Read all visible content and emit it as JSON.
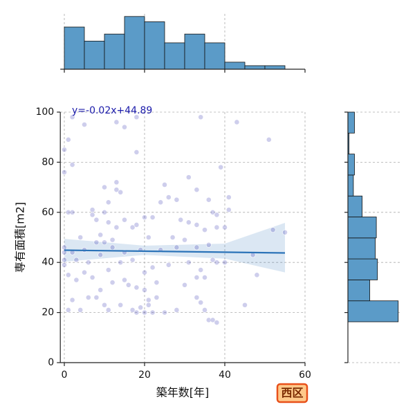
{
  "chart_data": [
    {
      "type": "scatter",
      "xlabel": "築年数[年]",
      "ylabel": "専有面積[m2]",
      "annotation": "y=-0.02x+44.89",
      "label": "西区",
      "xlim": [
        -1,
        60
      ],
      "xticks": [
        0,
        20,
        40,
        60
      ],
      "ylim": [
        0,
        100
      ],
      "yticks": [
        0,
        20,
        40,
        60,
        80,
        100
      ],
      "grid": true,
      "color": "#2222aa",
      "line_color": "#2b73b8",
      "points": {
        "x": [
          2,
          5,
          1,
          0,
          0,
          2,
          13,
          15,
          18,
          18,
          34,
          43,
          51,
          10,
          13,
          13,
          14,
          25,
          31,
          33,
          39,
          41,
          24,
          26,
          28,
          36,
          37,
          41,
          38,
          1,
          2,
          7,
          7,
          10,
          11,
          8,
          11,
          13,
          15,
          17,
          18,
          20,
          22,
          29,
          31,
          33,
          35,
          38,
          40,
          52,
          55,
          4,
          9,
          12,
          21,
          27,
          30,
          0,
          0,
          2,
          5,
          8,
          10,
          12,
          15,
          19,
          24,
          28,
          33,
          36,
          47,
          0,
          0,
          3,
          6,
          9,
          11,
          14,
          17,
          20,
          22,
          26,
          31,
          34,
          37,
          38,
          40,
          48,
          1,
          3,
          5,
          7,
          9,
          12,
          15,
          16,
          18,
          20,
          23,
          30,
          33,
          35,
          2,
          4,
          6,
          8,
          10,
          11,
          14,
          17,
          19,
          21,
          21,
          22,
          23,
          25,
          28,
          33,
          34,
          35,
          36,
          37,
          38,
          45,
          1,
          18,
          20
        ],
        "y": [
          98,
          95,
          89,
          85,
          76,
          79,
          96,
          94,
          98,
          84,
          98,
          96,
          89,
          70,
          72,
          69,
          68,
          71,
          74,
          69,
          78,
          66,
          64,
          66,
          65,
          65,
          60,
          61,
          59,
          60,
          60,
          61,
          59,
          60,
          64,
          57,
          56,
          54,
          57,
          54,
          55,
          58,
          58,
          57,
          56,
          55,
          53,
          54,
          54,
          53,
          52,
          50,
          51,
          49,
          50,
          50,
          49,
          46,
          44,
          44,
          45,
          48,
          48,
          46,
          44,
          45,
          45,
          46,
          46,
          47,
          43,
          41,
          39,
          41,
          40,
          43,
          37,
          40,
          41,
          36,
          38,
          39,
          40,
          37,
          41,
          40,
          40,
          35,
          35,
          33,
          36,
          34,
          29,
          32,
          33,
          31,
          30,
          29,
          32,
          31,
          34,
          34,
          25,
          21,
          26,
          26,
          23,
          21,
          23,
          21,
          22,
          23,
          25,
          20,
          26,
          20,
          21,
          26,
          24,
          21,
          17,
          17,
          16,
          23,
          21,
          20,
          20
        ]
      },
      "regression": {
        "x": [
          0,
          55
        ],
        "y": [
          44.89,
          43.79
        ]
      },
      "band": {
        "x": [
          0,
          20,
          40,
          55
        ],
        "upper": [
          49.4,
          46.7,
          47.5,
          55.8
        ],
        "lower": [
          40.3,
          43,
          41.5,
          36
        ]
      }
    },
    {
      "type": "histogram",
      "orientation": "vertical",
      "bins": [
        0,
        5,
        10,
        15,
        20,
        25,
        30,
        35,
        40,
        45,
        50,
        55
      ],
      "counts": [
        24,
        16,
        20,
        30,
        27,
        15,
        20,
        15,
        4,
        2,
        2
      ],
      "xlim": [
        -1,
        60
      ],
      "xticks": [
        0,
        20,
        40,
        60
      ],
      "ylim": [
        0,
        31.5
      ],
      "grid": true,
      "color": "#5b9bc8"
    },
    {
      "type": "histogram",
      "orientation": "horizontal",
      "bins": [
        16.3,
        24.67,
        33.04,
        41.41,
        49.78,
        58.15,
        66.52,
        74.89,
        83.26,
        91.63,
        100
      ],
      "counts": [
        46,
        20,
        27,
        25,
        26,
        13,
        5,
        6,
        1,
        6
      ],
      "ylim": [
        0,
        100
      ],
      "yticks": [
        0,
        20,
        40,
        60,
        80,
        100
      ],
      "xlim": [
        0,
        48.7
      ],
      "grid": true,
      "color": "#5b9bc8"
    }
  ]
}
